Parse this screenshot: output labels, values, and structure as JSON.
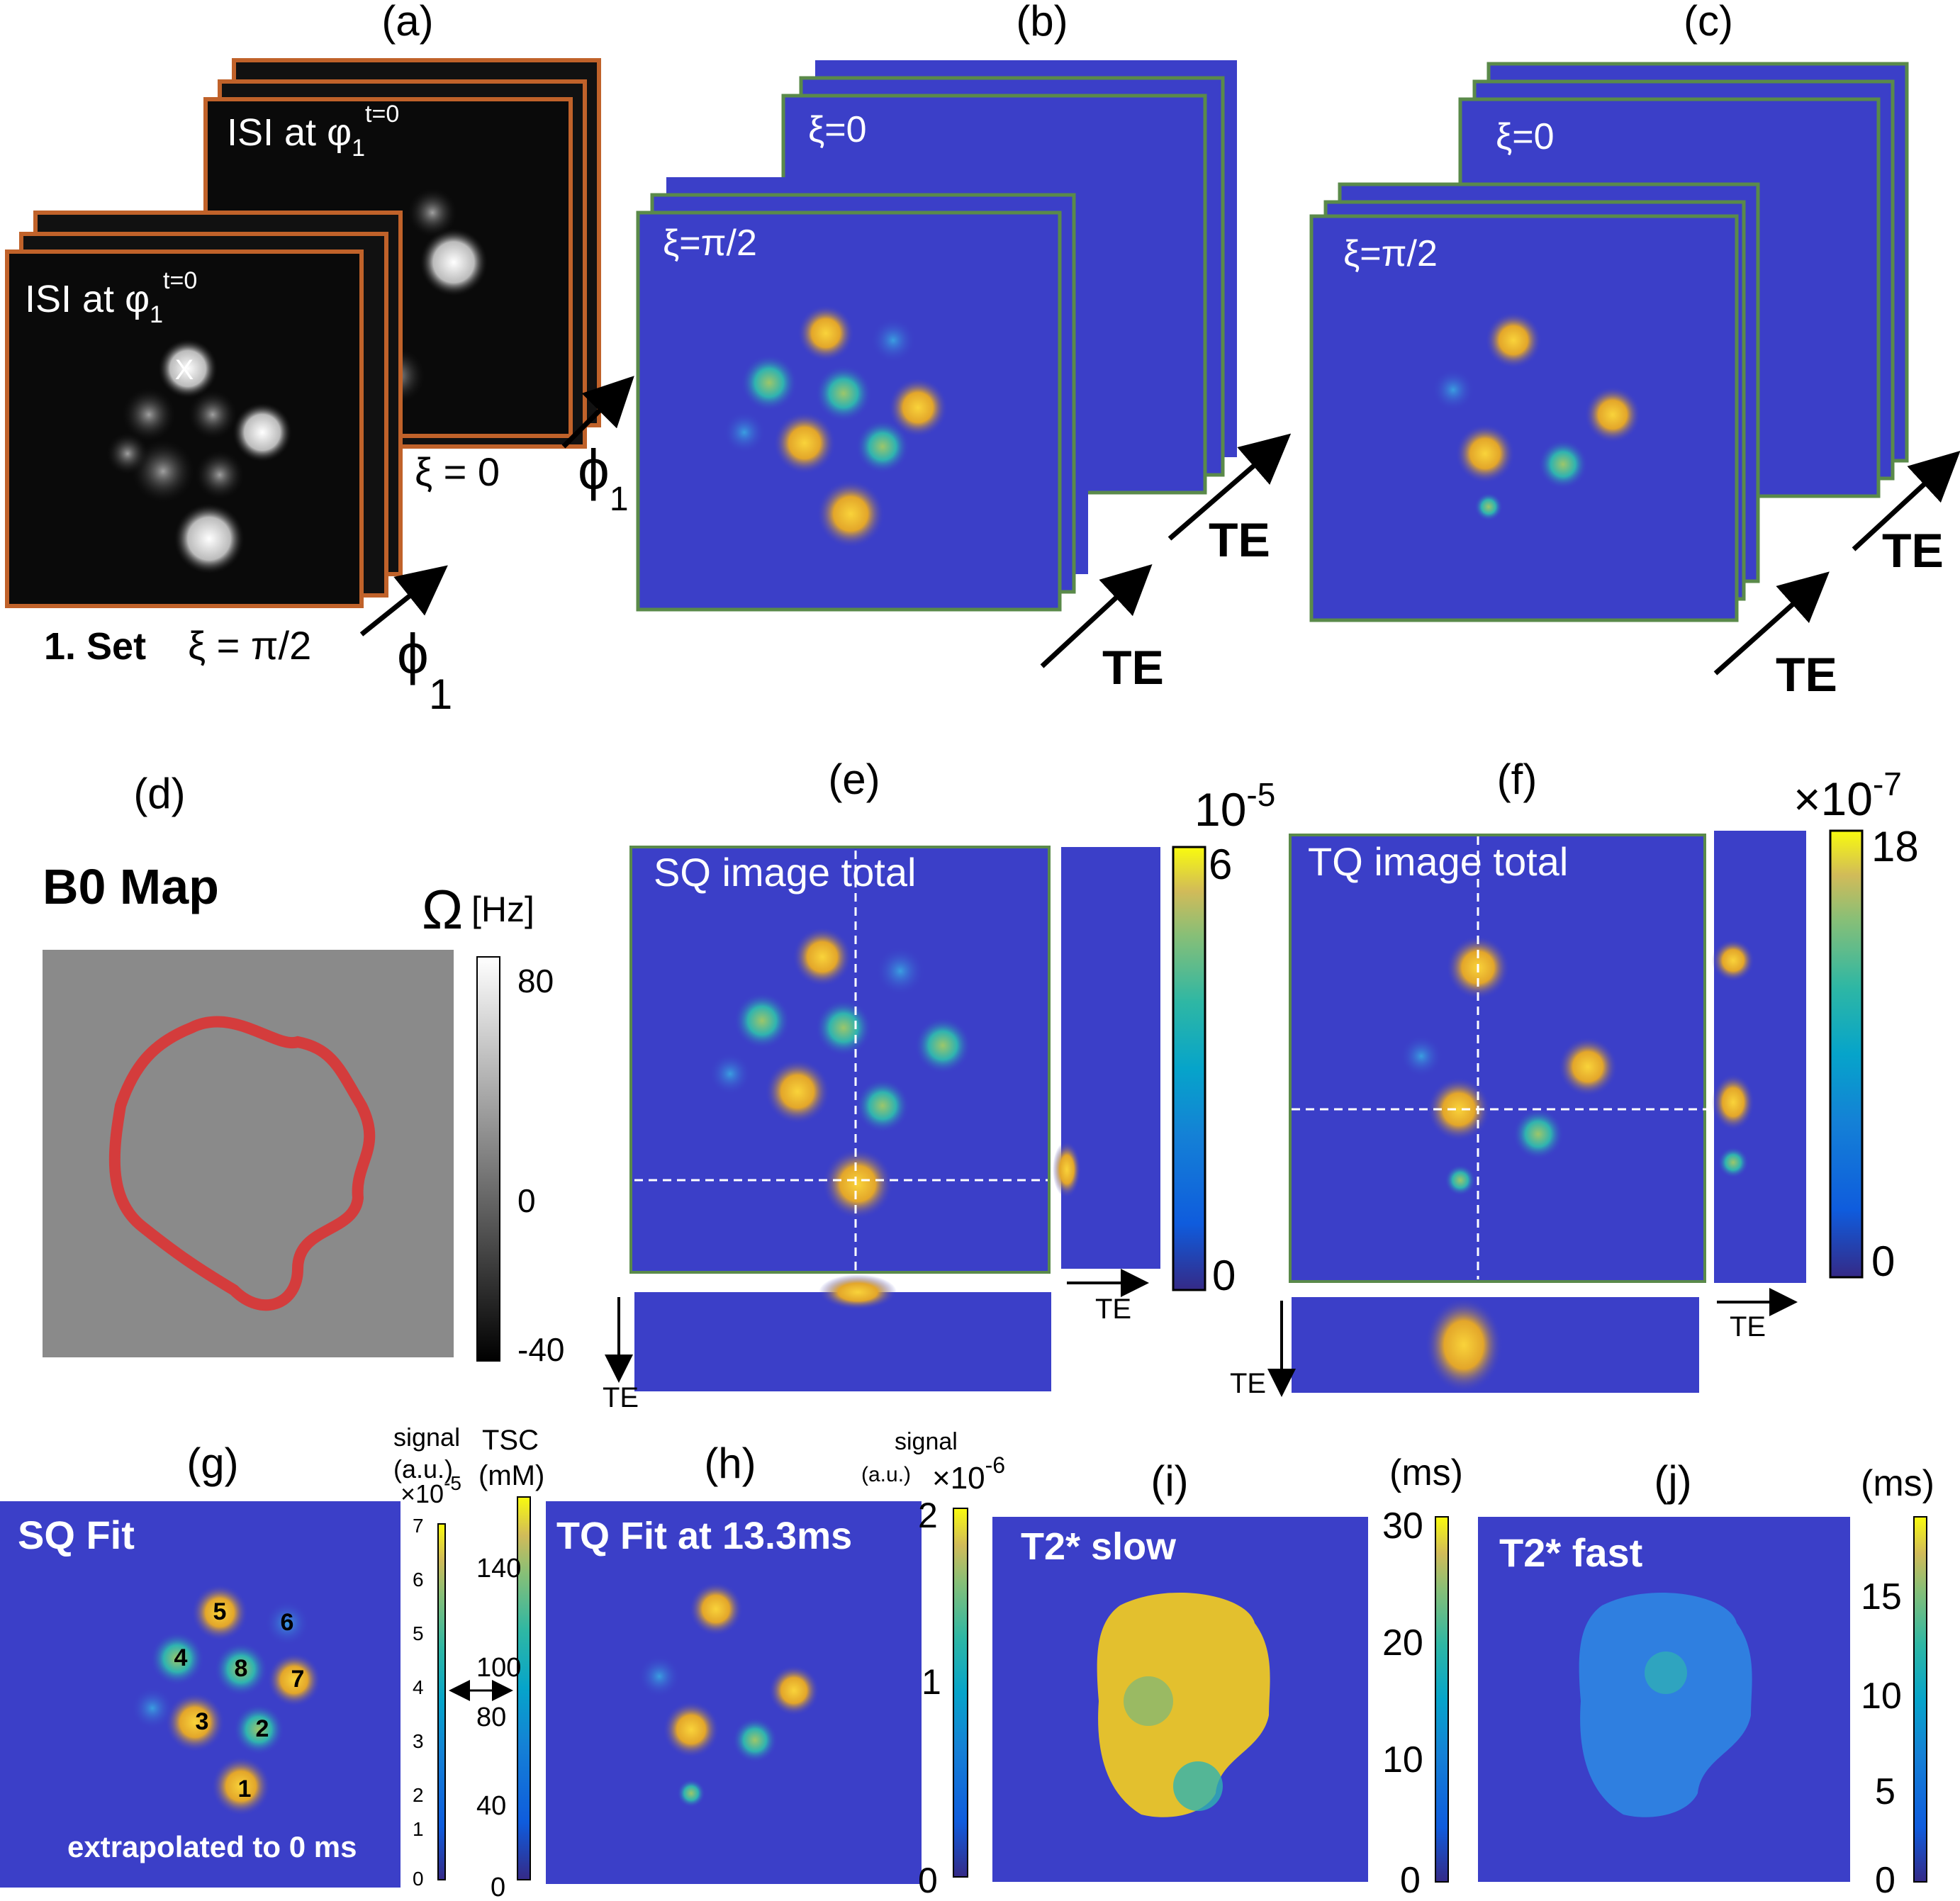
{
  "panels": {
    "a": {
      "letter": "(a)",
      "frame_text": "ISI at φ",
      "sub": "1",
      "sup": "t=0",
      "x_mark": "X",
      "xi0": "ξ = 0",
      "step_bold": "1. Set",
      "step_xi": "ξ = π/2",
      "phi": "ϕ",
      "phi_sub": "1"
    },
    "b": {
      "letter": "(b)",
      "xi0": "ξ=0",
      "xipi2": "ξ=π/2",
      "te": "TE"
    },
    "c": {
      "letter": "(c)",
      "xi0": "ξ=0",
      "xipi2": "ξ=π/2",
      "te": "TE"
    },
    "d": {
      "letter": "(d)",
      "title": "B0 Map",
      "omega": "Ω",
      "unit": "[Hz]",
      "ticks": [
        "80",
        "0",
        "-40"
      ]
    },
    "e": {
      "letter": "(e)",
      "title": "SQ image total",
      "exp": "10",
      "exp_pow": "-5",
      "ticks": [
        "6",
        "0"
      ],
      "te": "TE"
    },
    "f": {
      "letter": "(f)",
      "title": "TQ image total",
      "exp": "×10",
      "exp_pow": "-7",
      "ticks": [
        "18",
        "0"
      ],
      "te": "TE"
    },
    "g": {
      "letter": "(g)",
      "title": "SQ Fit",
      "footer": "extrapolated to 0 ms",
      "signal": "signal",
      "au": "(a.u.)",
      "exp": "×10",
      "exp_pow": "-5",
      "tsc": "TSC",
      "mm": "(mM)",
      "ticks_left": [
        "7",
        "6",
        "5",
        "4",
        "3",
        "2",
        "1",
        "0"
      ],
      "ticks_right": [
        "140",
        "100",
        "80",
        "40",
        "0"
      ],
      "vials": [
        "1",
        "2",
        "3",
        "4",
        "5",
        "6",
        "7",
        "8"
      ]
    },
    "h": {
      "letter": "(h)",
      "title": "TQ Fit at 13.3ms",
      "signal": "signal",
      "au": "(a.u.)",
      "exp": "×10",
      "exp_pow": "-6",
      "ticks": [
        "2",
        "1",
        "0"
      ]
    },
    "i": {
      "letter": "(i)",
      "title": "T2* slow",
      "unit": "(ms)",
      "ticks": [
        "30",
        "20",
        "10",
        "0"
      ]
    },
    "j": {
      "letter": "(j)",
      "title": "T2* fast",
      "unit": "(ms)",
      "ticks": [
        "15",
        "10",
        "5",
        "0"
      ]
    }
  },
  "colors": {
    "blue_bg": "#3b3fc8",
    "frame_orange": "#c0622a",
    "frame_green": "#5a8a4a",
    "contour_red": "#d43c3c"
  }
}
